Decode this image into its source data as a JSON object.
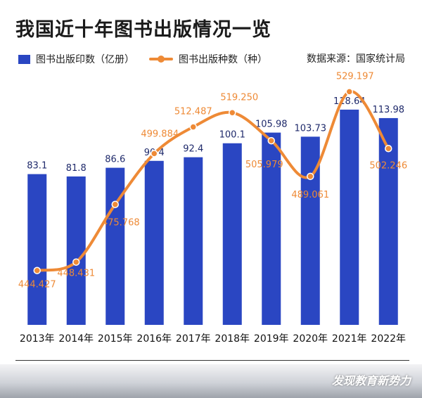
{
  "title": "我国近十年图书出版情况一览",
  "legend": {
    "bar_label": "图书出版印数（亿册）",
    "line_label": "图书出版种数（种）",
    "source": "数据来源：国家统计局"
  },
  "colors": {
    "bar": "#2a46c2",
    "line": "#ee8a36",
    "title": "#1a1a1a"
  },
  "chart_data": {
    "type": "bar",
    "title": "我国近十年图书出版情况一览",
    "categories": [
      "2013年",
      "2014年",
      "2015年",
      "2016年",
      "2017年",
      "2018年",
      "2019年",
      "2020年",
      "2021年",
      "2022年"
    ],
    "series": [
      {
        "name": "图书出版印数（亿册）",
        "type": "bar",
        "values": [
          83.1,
          81.8,
          86.6,
          90.4,
          92.4,
          100.1,
          105.98,
          103.73,
          118.64,
          113.98
        ],
        "labels": [
          "83.1",
          "81.8",
          "86.6",
          "90.4",
          "92.4",
          "100.1",
          "105.98",
          "103.73",
          "118.64",
          "113.98"
        ]
      },
      {
        "name": "图书出版种数（种）",
        "type": "line",
        "values": [
          444.427,
          448.431,
          475.768,
          499.884,
          512.487,
          519.25,
          505.979,
          489.061,
          529.197,
          502.246
        ],
        "labels": [
          "444.427",
          "448.431",
          "475.768",
          "499.884",
          "512.487",
          "519.250",
          "505.979",
          "489.061",
          "529.197",
          "502.246"
        ]
      }
    ],
    "bar_axis_range": [
      0,
      120
    ],
    "line_axis_range": [
      430,
      530
    ],
    "grid": false,
    "legend_position": "top-left"
  },
  "footer": {
    "watermark": "发现教育新势力"
  }
}
